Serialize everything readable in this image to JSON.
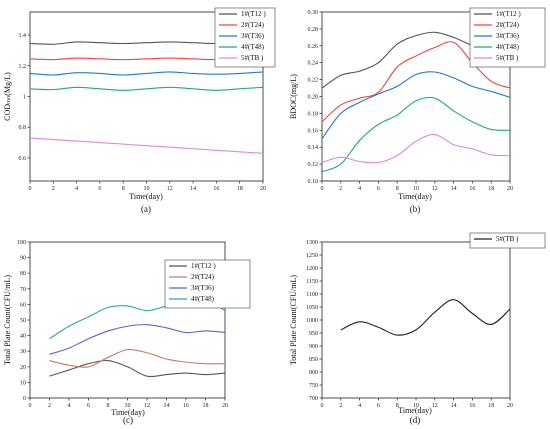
{
  "chart_data": [
    {
      "type": "line",
      "caption": "(a)",
      "xlabel": "Time(day)",
      "ylabel": "CODₘₙ(Mg/L)",
      "xlim": [
        0,
        20
      ],
      "ylim": [
        0.45,
        1.55
      ],
      "xticks": [
        0,
        2,
        4,
        6,
        8,
        10,
        12,
        14,
        16,
        18,
        20
      ],
      "yticks": [
        0.6,
        0.8,
        1.0,
        1.2,
        1.4
      ],
      "ytick_labels": [
        "0.6",
        "0.8",
        "1",
        "1.2",
        "1.4"
      ],
      "legend_position": "top-right",
      "series": [
        {
          "name": "1#(T12 )",
          "color": "#555555",
          "x": [
            0,
            2,
            4,
            6,
            8,
            10,
            12,
            14,
            16,
            18,
            20
          ],
          "y": [
            1.345,
            1.34,
            1.355,
            1.35,
            1.345,
            1.35,
            1.355,
            1.35,
            1.345,
            1.35,
            1.345
          ]
        },
        {
          "name": "2#(T24)",
          "color": "#ee4444",
          "x": [
            0,
            2,
            4,
            6,
            8,
            10,
            12,
            14,
            16,
            18,
            20
          ],
          "y": [
            1.245,
            1.24,
            1.25,
            1.245,
            1.24,
            1.245,
            1.25,
            1.245,
            1.24,
            1.245,
            1.24
          ]
        },
        {
          "name": "3#(T36)",
          "color": "#2277cc",
          "x": [
            0,
            2,
            4,
            6,
            8,
            10,
            12,
            14,
            16,
            18,
            20
          ],
          "y": [
            1.15,
            1.14,
            1.155,
            1.15,
            1.14,
            1.15,
            1.16,
            1.15,
            1.145,
            1.15,
            1.16
          ]
        },
        {
          "name": "4#(T48)",
          "color": "#22aa77",
          "x": [
            0,
            2,
            4,
            6,
            8,
            10,
            12,
            14,
            16,
            18,
            20
          ],
          "y": [
            1.05,
            1.045,
            1.06,
            1.05,
            1.04,
            1.05,
            1.06,
            1.05,
            1.04,
            1.05,
            1.06
          ]
        },
        {
          "name": "5#(TB )",
          "color": "#dd88dd",
          "x": [
            0,
            2,
            4,
            6,
            8,
            10,
            12,
            14,
            16,
            18,
            20
          ],
          "y": [
            0.73,
            0.72,
            0.71,
            0.7,
            0.69,
            0.68,
            0.67,
            0.66,
            0.65,
            0.64,
            0.63
          ]
        }
      ]
    },
    {
      "type": "line",
      "caption": "(b)",
      "xlabel": "Time(day)",
      "ylabel": "BDOC(mg/L)",
      "xlim": [
        0,
        20
      ],
      "ylim": [
        0.1,
        0.3
      ],
      "xticks": [
        0,
        2,
        4,
        6,
        8,
        10,
        12,
        14,
        16,
        18,
        20
      ],
      "yticks": [
        0.1,
        0.12,
        0.14,
        0.16,
        0.18,
        0.2,
        0.22,
        0.24,
        0.26,
        0.28,
        0.3
      ],
      "ytick_labels": [
        "0.10",
        "0.12",
        "0.14",
        "0.16",
        "0.18",
        "0.20",
        "0.22",
        "0.24",
        "0.26",
        "0.28",
        "0.30"
      ],
      "legend_position": "top-right",
      "series": [
        {
          "name": "1#(T12 )",
          "color": "#555555",
          "x": [
            0,
            2,
            4,
            6,
            8,
            10,
            12,
            14,
            16,
            18,
            20
          ],
          "y": [
            0.21,
            0.225,
            0.23,
            0.24,
            0.262,
            0.272,
            0.276,
            0.27,
            0.26,
            0.25,
            0.241
          ]
        },
        {
          "name": "2#(T24)",
          "color": "#ee4444",
          "x": [
            0,
            2,
            4,
            6,
            8,
            10,
            12,
            14,
            16,
            18,
            20
          ],
          "y": [
            0.17,
            0.19,
            0.198,
            0.205,
            0.235,
            0.248,
            0.258,
            0.264,
            0.24,
            0.218,
            0.21
          ]
        },
        {
          "name": "3#(T36)",
          "color": "#2277cc",
          "x": [
            0,
            2,
            4,
            6,
            8,
            10,
            12,
            14,
            16,
            18,
            20
          ],
          "y": [
            0.15,
            0.18,
            0.193,
            0.203,
            0.212,
            0.226,
            0.229,
            0.222,
            0.212,
            0.206,
            0.199
          ]
        },
        {
          "name": "4#(T48)",
          "color": "#22aa77",
          "x": [
            0,
            2,
            4,
            6,
            8,
            10,
            12,
            14,
            16,
            18,
            20
          ],
          "y": [
            0.111,
            0.12,
            0.148,
            0.167,
            0.178,
            0.195,
            0.198,
            0.183,
            0.17,
            0.161,
            0.16
          ]
        },
        {
          "name": "5#(TB )",
          "color": "#dd88dd",
          "x": [
            0,
            2,
            4,
            6,
            8,
            10,
            12,
            14,
            16,
            18,
            20
          ],
          "y": [
            0.122,
            0.128,
            0.123,
            0.122,
            0.13,
            0.147,
            0.155,
            0.143,
            0.138,
            0.131,
            0.13
          ]
        }
      ]
    },
    {
      "type": "line",
      "caption": "(c)",
      "xlabel": "Time(day)",
      "ylabel": "Total Plate Count(CFU/mL)",
      "xlim": [
        0,
        20
      ],
      "ylim": [
        0,
        100
      ],
      "xticks": [
        0,
        2,
        4,
        6,
        8,
        10,
        12,
        14,
        16,
        18,
        20
      ],
      "yticks": [
        0,
        10,
        20,
        30,
        40,
        50,
        60,
        70,
        80,
        90,
        100
      ],
      "ytick_labels": [
        "0",
        "10",
        "20",
        "30",
        "40",
        "50",
        "60",
        "70",
        "80",
        "90",
        "100"
      ],
      "legend_position": "top-right",
      "series": [
        {
          "name": "1#(T12 )",
          "color": "#555555",
          "x": [
            2,
            4,
            6,
            8,
            10,
            12,
            14,
            16,
            18,
            20
          ],
          "y": [
            14,
            18,
            22,
            24,
            20,
            14,
            15,
            16,
            15,
            16
          ]
        },
        {
          "name": "2#(T24)",
          "color": "#cc7766",
          "x": [
            2,
            4,
            6,
            8,
            10,
            12,
            14,
            16,
            18,
            20
          ],
          "y": [
            24,
            21,
            20,
            26,
            31,
            29,
            25,
            23,
            22,
            22
          ]
        },
        {
          "name": "3#(T36)",
          "color": "#5566cc",
          "x": [
            2,
            4,
            6,
            8,
            10,
            12,
            14,
            16,
            18,
            20
          ],
          "y": [
            28,
            32,
            38,
            43,
            46,
            47,
            45,
            42,
            43,
            42
          ]
        },
        {
          "name": "4#(T48)",
          "color": "#33aa99",
          "x": [
            2,
            4,
            6,
            8,
            10,
            12,
            14,
            16,
            18,
            20
          ],
          "y": [
            38,
            46,
            52,
            58,
            59,
            56,
            59,
            62,
            63,
            56
          ]
        }
      ]
    },
    {
      "type": "line",
      "caption": "(d)",
      "xlabel": "Time(day)",
      "ylabel": "Total Plate Count(CFU/mL)",
      "xlim": [
        0,
        20
      ],
      "ylim": [
        700,
        1300
      ],
      "xticks": [
        0,
        2,
        4,
        6,
        8,
        10,
        12,
        14,
        16,
        18,
        20
      ],
      "yticks": [
        700,
        750,
        800,
        850,
        900,
        950,
        1000,
        1050,
        1100,
        1150,
        1200,
        1250,
        1300
      ],
      "ytick_labels": [
        "700",
        "750",
        "800",
        "850",
        "900",
        "950",
        "1000",
        "1050",
        "1100",
        "1150",
        "1200",
        "1250",
        "1300"
      ],
      "legend_position": "top-right",
      "series": [
        {
          "name": "5#(TB )",
          "color": "#222222",
          "x": [
            2,
            4,
            6,
            8,
            10,
            12,
            14,
            16,
            18,
            20
          ],
          "y": [
            962,
            993,
            972,
            942,
            962,
            1030,
            1078,
            1025,
            983,
            1042
          ]
        }
      ]
    }
  ]
}
